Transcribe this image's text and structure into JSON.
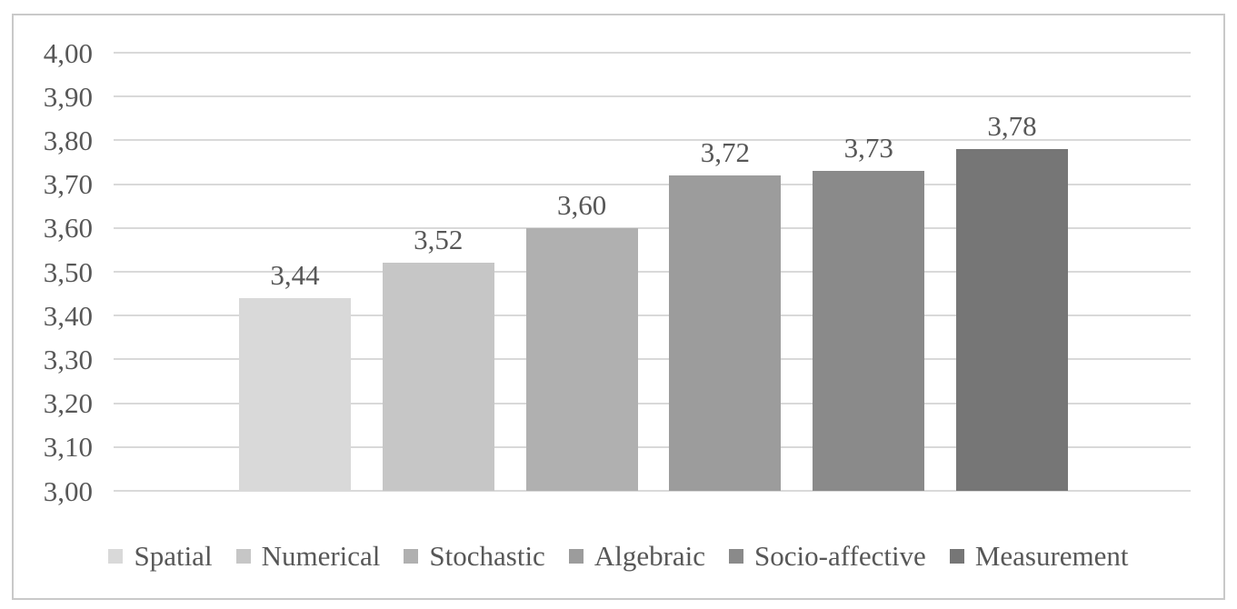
{
  "chart_data": {
    "type": "bar",
    "title": "",
    "xlabel": "",
    "ylabel": "",
    "categories": [
      "Spatial",
      "Numerical",
      "Stochastic",
      "Algebraic",
      "Socio-affective",
      "Measurement"
    ],
    "values": [
      3.44,
      3.52,
      3.6,
      3.72,
      3.73,
      3.78
    ],
    "value_labels": [
      "3,44",
      "3,52",
      "3,60",
      "3,72",
      "3,73",
      "3,78"
    ],
    "bar_colors": [
      "#d9d9d9",
      "#c6c6c6",
      "#b0b0b0",
      "#9c9c9c",
      "#8a8a8a",
      "#767676"
    ],
    "ylim": [
      3.0,
      4.0
    ],
    "y_tick_step": 0.1,
    "y_tick_labels": [
      "4,00",
      "3,90",
      "3,80",
      "3,70",
      "3,60",
      "3,50",
      "3,40",
      "3,30",
      "3,20",
      "3,10",
      "3,00"
    ],
    "decimal_separator": ",",
    "grid": true,
    "legend_position": "bottom"
  },
  "style": {
    "text_color": "#575757",
    "gridline_color": "#d9d9d9",
    "frame_border_color": "#c9c9c9",
    "background": "#ffffff"
  }
}
